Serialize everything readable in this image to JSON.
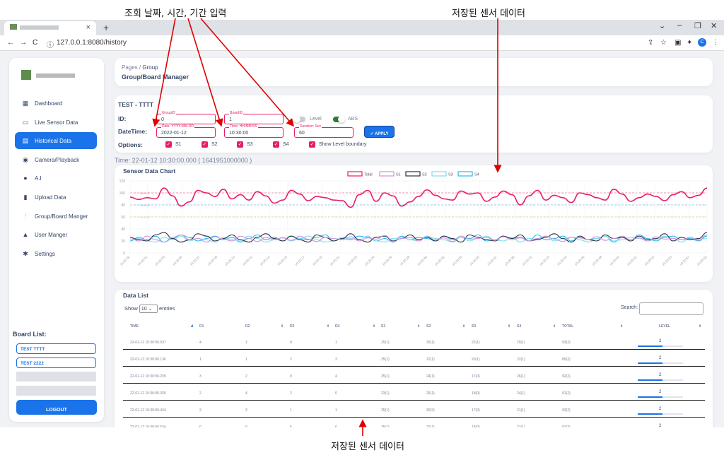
{
  "annotations": {
    "input_label": "조회 날짜, 시간, 기간 입력",
    "chart_label": "저장된 센서 데이터",
    "table_label": "저장된 센서 데이터"
  },
  "browser": {
    "url": "127.0.0.1:8080/history",
    "tab_close": "×",
    "new_tab": "+",
    "profile_initial": "C"
  },
  "sidebar": {
    "items": [
      {
        "label": "Dashboard",
        "icon": "dashboard-icon"
      },
      {
        "label": "Live Sensor Data",
        "icon": "cast-icon"
      },
      {
        "label": "Historical Data",
        "icon": "history-icon"
      },
      {
        "label": "Camera/Playback",
        "icon": "play-icon"
      },
      {
        "label": "A.I",
        "icon": "brain-icon"
      },
      {
        "label": "Upload Data",
        "icon": "file-icon"
      },
      {
        "label": "Group/Board Manger",
        "icon": "graph-icon"
      },
      {
        "label": "User Manger",
        "icon": "person-icon"
      },
      {
        "label": "Settings",
        "icon": "gear-icon"
      }
    ],
    "board_list_title": "Board List:",
    "boards": [
      "TEST TTTT",
      "TEST 2222"
    ],
    "logout": "LOGOUT"
  },
  "header": {
    "crumb_root": "Pages",
    "crumb_sep": "/",
    "crumb_current": "Group",
    "title": "Group/Board Manager"
  },
  "form": {
    "title": "TEST - TTTT",
    "id_label": "ID:",
    "datetime_label": "DateTime:",
    "options_label": "Options:",
    "group_ph": "GroupID",
    "group_val": "0",
    "board_ph": "BoardID",
    "board_val": "1",
    "date_ph": "Date: YYYY-MM-DD",
    "date_val": "2022-01-12",
    "time_ph": "Time: HH:MM:SS",
    "time_val": "10:30:00",
    "dur_ph": "Duration: Sec",
    "dur_val": "60",
    "level_label": "Level",
    "level_on": false,
    "abs_label": "ABS",
    "abs_on": true,
    "apply": "✓ APPLY",
    "options": [
      "S1",
      "S2",
      "S3",
      "S4",
      "Show Level boundary"
    ]
  },
  "time_info": "Time:  22-01-12 10:30:00.000 ( 1641951000000 )",
  "chart_data": {
    "type": "line",
    "title": "Sensor Data Chart",
    "ylim": [
      0,
      120
    ],
    "yticks": [
      0,
      20,
      40,
      60,
      80,
      100,
      120
    ],
    "xticks": [
      "10:30:00",
      "10:30:01",
      "10:30:03",
      "10:30:05",
      "10:30:07",
      "10:30:08",
      "10:30:10",
      "10:30:12",
      "10:30:14",
      "10:30:15",
      "10:30:17",
      "10:30:19",
      "10:30:21",
      "10:30:23",
      "10:30:24",
      "10:30:26",
      "10:30:28",
      "10:30:30",
      "10:30:32",
      "10:30:33",
      "10:30:35",
      "10:30:37",
      "10:30:39",
      "10:30:41",
      "10:30:43",
      "10:30:44",
      "10:30:46",
      "10:30:48",
      "10:30:50",
      "10:30:51",
      "10:30:53",
      "10:30:55",
      "10:30:57",
      "10:30:59"
    ],
    "levels": [
      {
        "name": "Level3",
        "value": 100,
        "color": "#f48fb1"
      },
      {
        "name": "Level2",
        "value": 80,
        "color": "#90caf9"
      },
      {
        "name": "Level1",
        "value": 60,
        "color": "#c5e1a5"
      }
    ],
    "series": [
      {
        "name": "Total",
        "color": "#e91e63",
        "values": [
          93,
          89,
          92,
          90,
          108,
          95,
          78,
          85,
          104,
          100,
          94,
          106,
          90,
          97,
          88,
          102,
          95,
          83,
          88,
          104,
          98,
          87,
          94,
          92,
          88,
          87,
          76,
          97,
          104,
          86,
          100,
          95,
          78,
          85,
          94,
          105,
          96,
          90,
          88,
          103,
          98,
          100,
          86,
          93,
          103,
          97,
          80,
          95,
          104,
          88,
          96,
          92,
          84,
          100,
          97,
          92,
          88,
          106,
          98,
          86,
          92,
          98,
          94,
          87,
          97,
          102,
          92,
          96,
          108
        ]
      },
      {
        "name": "S1",
        "color": "#ce93d8",
        "values": [
          25,
          20,
          28,
          22,
          18,
          26,
          30,
          22,
          24,
          18,
          27,
          23,
          20,
          28,
          24,
          19,
          26,
          22,
          25,
          21,
          28,
          23,
          19,
          26,
          24,
          22,
          27,
          20,
          25,
          23,
          29,
          21,
          24,
          26,
          20,
          27,
          22,
          25,
          19,
          28,
          23,
          24,
          26,
          21,
          27,
          22,
          25,
          20,
          24,
          28,
          23,
          19,
          26,
          25,
          22,
          27,
          21,
          24,
          28,
          22,
          25,
          20,
          27,
          23,
          24,
          22,
          26,
          21,
          30
        ]
      },
      {
        "name": "S2",
        "color": "#2e2e48",
        "values": [
          26,
          22,
          20,
          30,
          34,
          24,
          18,
          22,
          32,
          28,
          20,
          24,
          30,
          22,
          18,
          26,
          32,
          24,
          20,
          28,
          22,
          18,
          30,
          26,
          20,
          24,
          32,
          22,
          18,
          26,
          28,
          20,
          24,
          30,
          22,
          26,
          20,
          28,
          24,
          18,
          30,
          26,
          22,
          20,
          28,
          24,
          30,
          20,
          22,
          26,
          32,
          24,
          18,
          28,
          22,
          20,
          30,
          24,
          26,
          20,
          28,
          22,
          24,
          32,
          20,
          26,
          22,
          24,
          34
        ]
      },
      {
        "name": "S3",
        "color": "#80deea",
        "values": [
          22,
          24,
          20,
          18,
          26,
          22,
          28,
          20,
          24,
          22,
          18,
          26,
          22,
          20,
          28,
          24,
          18,
          22,
          26,
          20,
          24,
          28,
          22,
          18,
          20,
          26,
          24,
          22,
          28,
          20,
          18,
          24,
          26,
          22,
          20,
          28,
          24,
          22,
          18,
          26,
          20,
          24,
          28,
          22,
          20,
          26,
          18,
          24,
          22,
          28,
          20,
          24,
          26,
          22,
          18,
          24,
          28,
          20,
          22,
          26,
          24,
          20,
          22,
          28,
          24,
          18,
          26,
          22,
          24
        ]
      },
      {
        "name": "S4",
        "color": "#29b6f6",
        "values": [
          20,
          26,
          22,
          28,
          18,
          24,
          30,
          26,
          20,
          24,
          28,
          22,
          26,
          18,
          24,
          30,
          22,
          26,
          20,
          28,
          24,
          22,
          26,
          30,
          20,
          24,
          22,
          28,
          26,
          20,
          24,
          18,
          28,
          22,
          26,
          24,
          20,
          28,
          22,
          26,
          24,
          30,
          20,
          22,
          28,
          24,
          26,
          20,
          30,
          22,
          24,
          28,
          20,
          26,
          22,
          24,
          28,
          18,
          26,
          22,
          30,
          24,
          20,
          26,
          28,
          22,
          24,
          20,
          28
        ]
      }
    ]
  },
  "table": {
    "title": "Data List",
    "show_label": "Show",
    "entries_value": "10",
    "entries_label": "entries",
    "search_label": "Search:",
    "sort_icon": "▲",
    "sort_both_icon": "⇕",
    "headers": [
      "TIME",
      "D1",
      "D2",
      "D3",
      "D4",
      "S1",
      "S2",
      "S3",
      "S4",
      "TOTAL",
      "LEVEL"
    ],
    "rows": [
      {
        "cells": [
          "22-01-12 10:30:00.037",
          "4",
          "1",
          "0",
          "1",
          "25(1)",
          "26(1)",
          "22(1)",
          "20(1)",
          "93(2)",
          "2"
        ],
        "level": 0.55
      },
      {
        "cells": [
          "22-01-12 10:30:00.136",
          "1",
          "1",
          "2",
          "3",
          "25(1)",
          "22(1)",
          "20(1)",
          "22(1)",
          "89(2)",
          "2"
        ],
        "level": 0.55
      },
      {
        "cells": [
          "22-01-12 10:30:00.235",
          "3",
          "2",
          "0",
          "4",
          "25(1)",
          "24(1)",
          "17(0)",
          "26(1)",
          "92(2)",
          "2"
        ],
        "level": 0.55
      },
      {
        "cells": [
          "22-01-12 10:30:00.335",
          "2",
          "4",
          "2",
          "0",
          "23(1)",
          "26(1)",
          "18(0)",
          "24(1)",
          "91(2)",
          "2"
        ],
        "level": 0.55
      },
      {
        "cells": [
          "22-01-12 10:30:00.434",
          "2",
          "3",
          "1",
          "1",
          "25(1)",
          "30(2)",
          "17(0)",
          "21(1)",
          "93(2)",
          "2"
        ],
        "level": 0.55
      },
      {
        "cells": [
          "22-01-12 10:30:00.534",
          "0",
          "0",
          "5",
          "0",
          "25(1)",
          "22(1)",
          "18(0)",
          "21(1)",
          "91(2)",
          "2"
        ],
        "level": 0.55
      }
    ]
  }
}
